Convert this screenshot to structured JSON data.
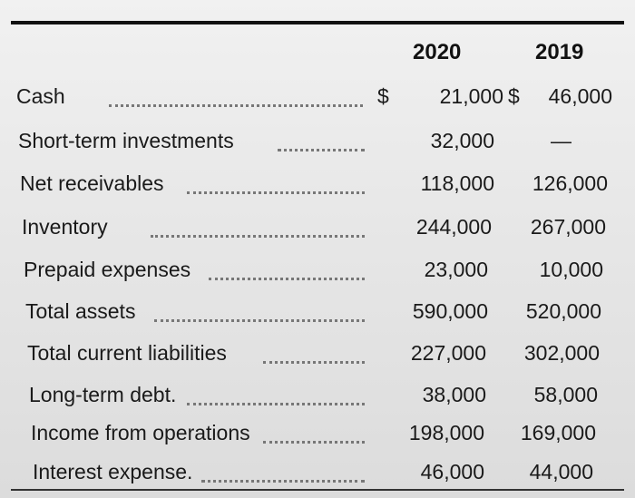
{
  "header": {
    "col_2020": "2020",
    "col_2019": "2019"
  },
  "rows": [
    {
      "label": "Cash",
      "dollar": "$",
      "v2020": "21,000",
      "dollar2": "$",
      "v2019": "46,000"
    },
    {
      "label": "Short-term investments",
      "v2020": "32,000",
      "v2019": "—"
    },
    {
      "label": "Net receivables",
      "v2020": "118,000",
      "v2019": "126,000"
    },
    {
      "label": "Inventory",
      "v2020": "244,000",
      "v2019": "267,000"
    },
    {
      "label": "Prepaid expenses",
      "v2020": "23,000",
      "v2019": "10,000"
    },
    {
      "label": "Total assets",
      "v2020": "590,000",
      "v2019": "520,000"
    },
    {
      "label": "Total current liabilities",
      "v2020": "227,000",
      "v2019": "302,000"
    },
    {
      "label": "Long-term debt.",
      "v2020": "38,000",
      "v2019": "58,000"
    },
    {
      "label": "Income from operations",
      "v2020": "198,000",
      "v2019": "169,000"
    },
    {
      "label": "Interest expense.",
      "v2020": "46,000",
      "v2019": "44,000"
    }
  ]
}
